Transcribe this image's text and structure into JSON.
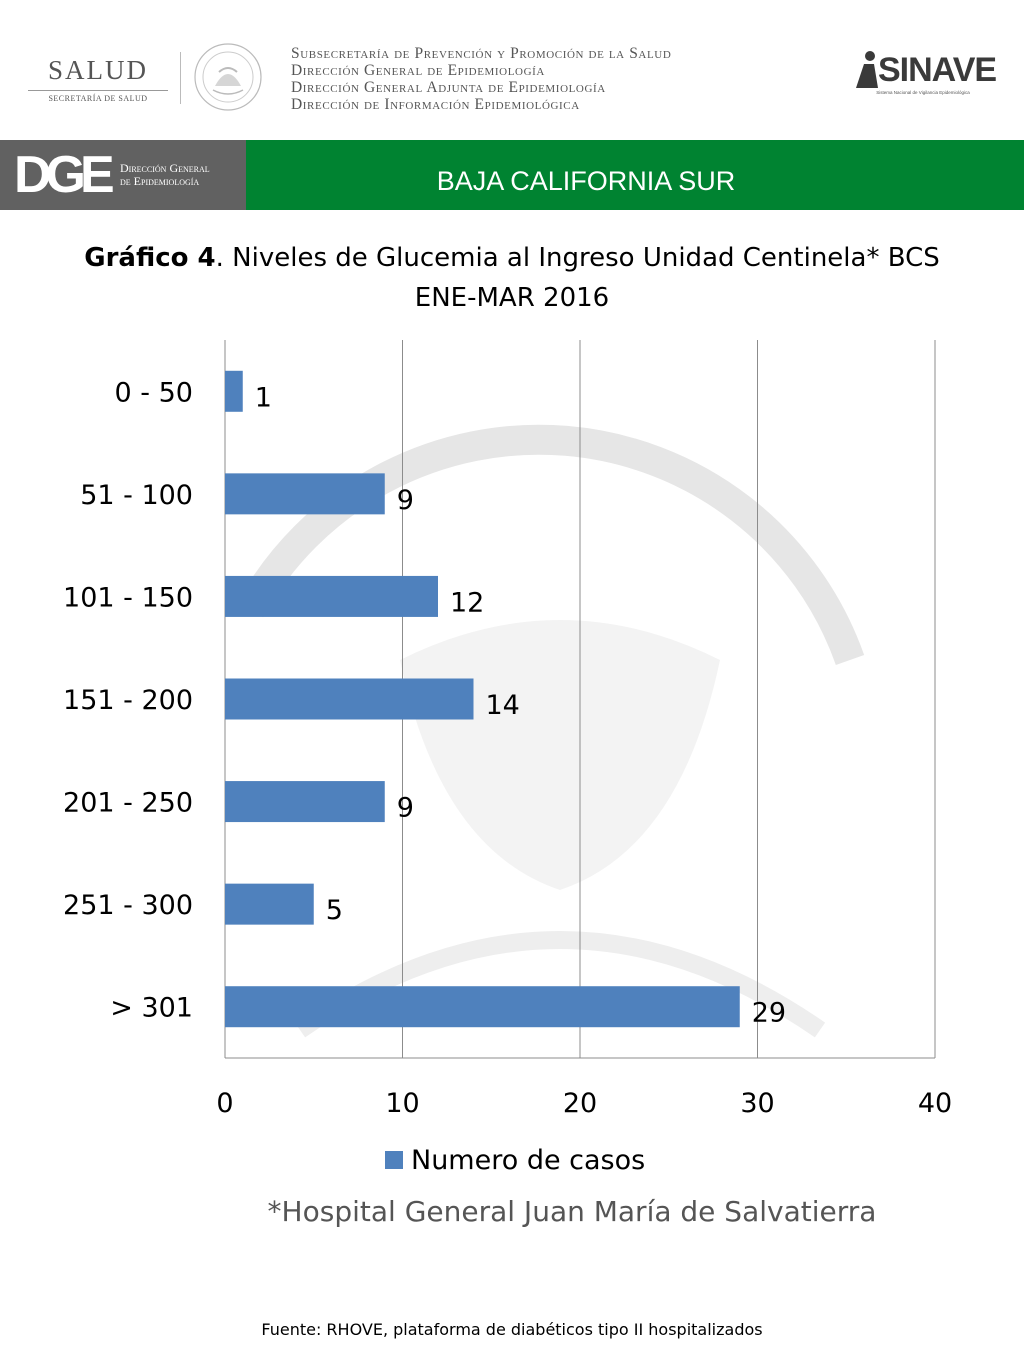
{
  "header": {
    "salud_title": "SALUD",
    "salud_subtitle": "SECRETARÍA DE SALUD",
    "agency_lines": [
      "Subsecretaría de Prevención y Promoción de la Salud",
      "Dirección General de Epidemiología",
      "Dirección General Adjunta de Epidemiología",
      "Dirección de Información Epidemiológica"
    ],
    "sinave_logo": "SINAVE",
    "sinave_subtitle": "Sistema Nacional de Vigilancia Epidemiológica"
  },
  "banner": {
    "dge_logo": "DGE",
    "dge_caption_1": "Dirección General",
    "dge_caption_2": "de Epidemiología",
    "region": "BAJA CALIFORNIA SUR",
    "background_color": "#008331",
    "logo_box_color": "#616161"
  },
  "chart_data": {
    "type": "bar",
    "orientation": "horizontal",
    "title_bold": "Gráfico 4",
    "title_rest": ". Niveles de Glucemia al Ingreso Unidad Centinela* BCS",
    "subtitle": "ENE-MAR 2016",
    "categories": [
      "0 - 50",
      "51 - 100",
      "101 - 150",
      "151 - 200",
      "201 - 250",
      "251 - 300",
      "> 301"
    ],
    "series": [
      {
        "name": "Numero de casos",
        "values": [
          1,
          9,
          12,
          14,
          9,
          5,
          29
        ],
        "color": "#4f81bd"
      }
    ],
    "xlim": [
      0,
      40
    ],
    "xticks": [
      0,
      10,
      20,
      30,
      40
    ],
    "grid": "vertical",
    "legend_position": "bottom",
    "data_labels": true
  },
  "footnote": "*Hospital General Juan María de Salvatierra",
  "source": "Fuente: RHOVE, plataforma de diabéticos tipo II hospitalizados"
}
